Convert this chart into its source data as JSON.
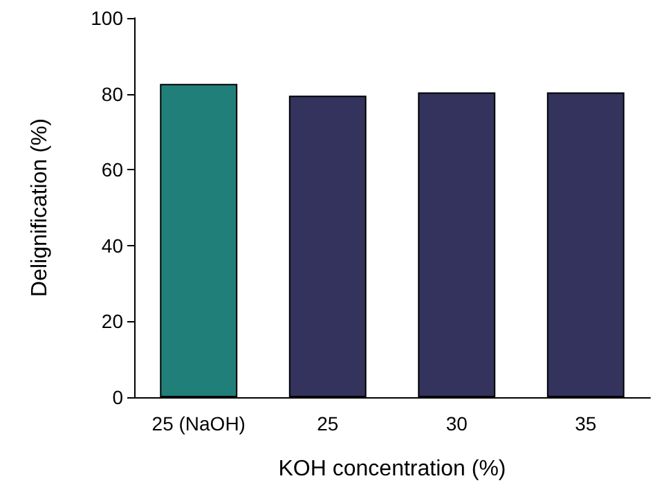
{
  "chart_data": {
    "type": "bar",
    "xlabel": "KOH concentration (%)",
    "ylabel": "Delignification (%)",
    "categories": [
      "25 (NaOH)",
      "25",
      "30",
      "35"
    ],
    "values": [
      82.6,
      79.5,
      80.4,
      80.4
    ],
    "colors": [
      "#217f7a",
      "#33335e",
      "#33335e",
      "#33335e"
    ],
    "ylim": [
      0,
      100
    ],
    "yticks": [
      0,
      20,
      40,
      60,
      80,
      100
    ],
    "grid": false
  }
}
